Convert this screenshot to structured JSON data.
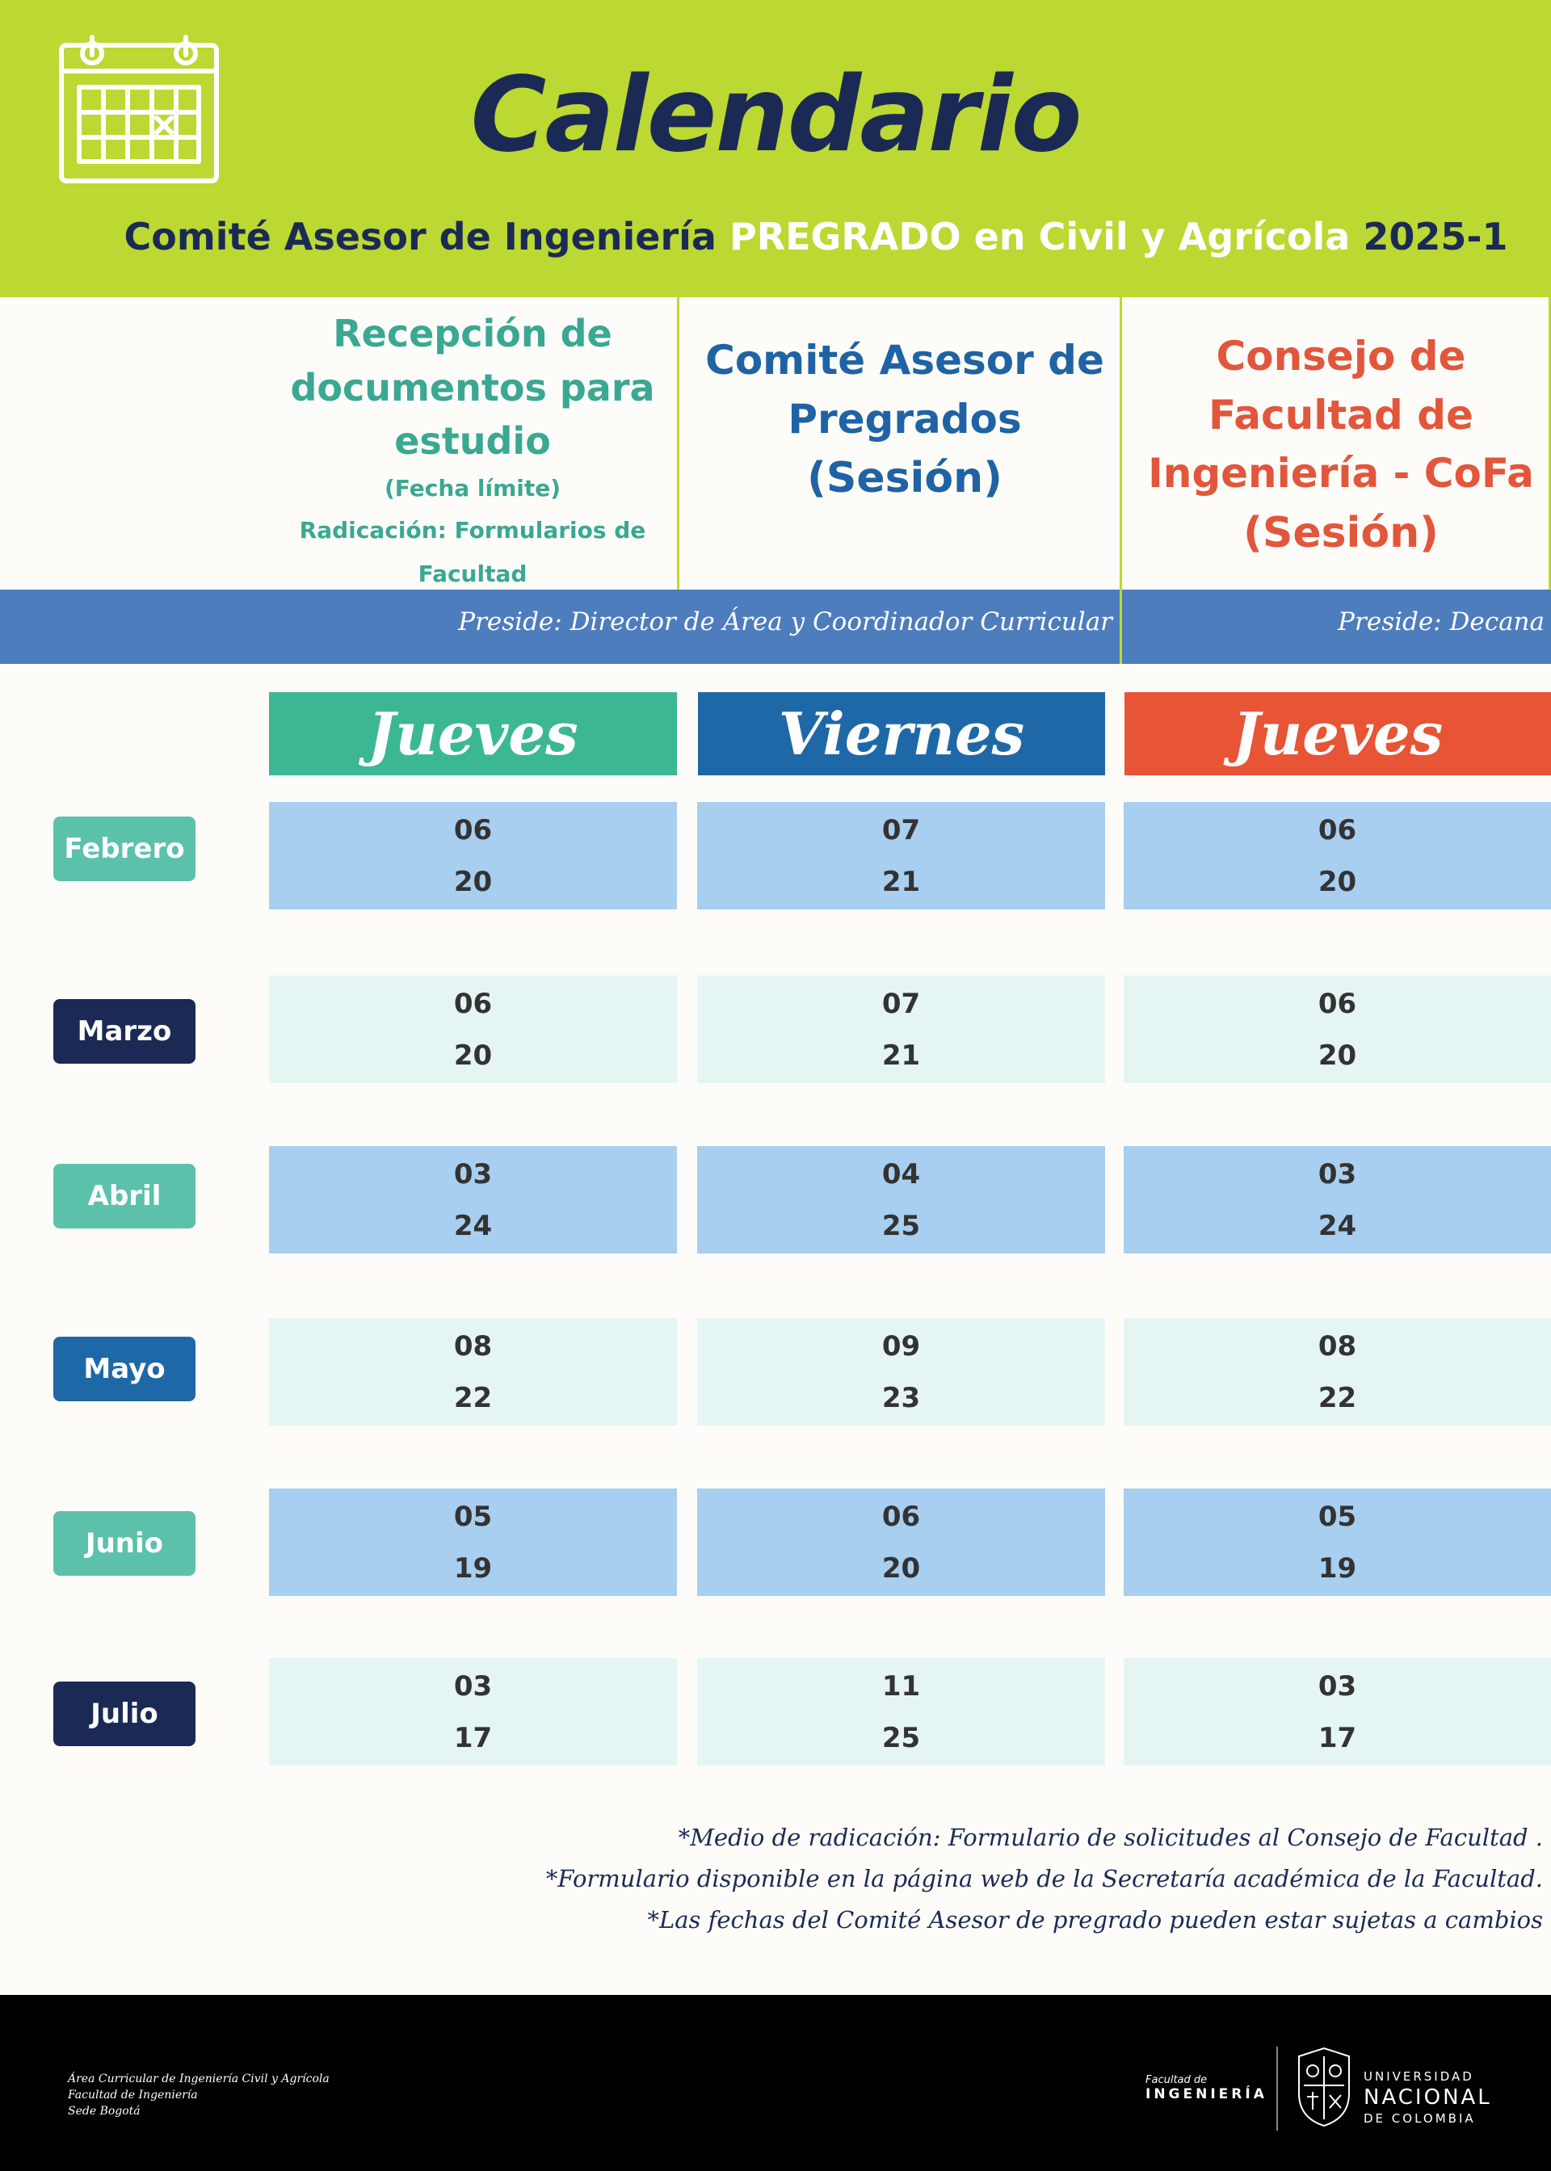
{
  "header": {
    "title": "Calendario",
    "subtitle": {
      "part1": "Comité Asesor de Ingeniería",
      "part2": "PREGRADO en Civil y Agrícola",
      "part3": "2025-1"
    },
    "icon": "calendar-icon"
  },
  "columns": [
    {
      "title_lines": [
        "Recepción de",
        "documentos para",
        "estudio"
      ],
      "note": "(Fecha límite)",
      "note2": "Radicación: Formularios de Facultad",
      "day": "Jueves"
    },
    {
      "title_lines": [
        "Comité Asesor de",
        "Pregrados"
      ],
      "session": "(Sesión)",
      "day": "Viernes"
    },
    {
      "title_lines": [
        "Consejo de",
        "Facultad de",
        "Ingeniería - CoFa"
      ],
      "session": "(Sesión)",
      "day": "Jueves"
    }
  ],
  "preside": {
    "left": "Preside: Director de Área y Coordinador Curricular",
    "right": "Preside: Decana"
  },
  "months": [
    {
      "name": "Febrero",
      "dates": [
        [
          "06",
          "20"
        ],
        [
          "07",
          "21"
        ],
        [
          "06",
          "20"
        ]
      ]
    },
    {
      "name": "Marzo",
      "dates": [
        [
          "06",
          "20"
        ],
        [
          "07",
          "21"
        ],
        [
          "06",
          "20"
        ]
      ]
    },
    {
      "name": "Abril",
      "dates": [
        [
          "03",
          "24"
        ],
        [
          "04",
          "25"
        ],
        [
          "03",
          "24"
        ]
      ]
    },
    {
      "name": "Mayo",
      "dates": [
        [
          "08",
          "22"
        ],
        [
          "09",
          "23"
        ],
        [
          "08",
          "22"
        ]
      ]
    },
    {
      "name": "Junio",
      "dates": [
        [
          "05",
          "19"
        ],
        [
          "06",
          "20"
        ],
        [
          "05",
          "19"
        ]
      ]
    },
    {
      "name": "Julio",
      "dates": [
        [
          "03",
          "17"
        ],
        [
          "11",
          "25"
        ],
        [
          "03",
          "17"
        ]
      ]
    }
  ],
  "colors": {
    "month_badges": [
      "#5cc1ab",
      "#1b2a55",
      "#5cc1ab",
      "#1f68a8",
      "#5cc1ab",
      "#1b2a55"
    ],
    "row_light_blue": "#a8cef0",
    "row_pale_mint": "#e5f5f3",
    "header_green": "#bcd832",
    "bar_blue": "#4d7dbc"
  },
  "notes": [
    "*Medio de radicación: Formulario de solicitudes al Consejo de Facultad .",
    "*Formulario disponible en la página web de la Secretaría académica de la Facultad.",
    "*Las fechas del Comité Asesor de pregrado pueden estar sujetas a cambios"
  ],
  "footer": {
    "left_lines": [
      "Área Curricular de Ingeniería Civil y Agrícola",
      "Facultad de Ingeniería",
      "Sede Bogotá"
    ],
    "faculty_small": "Facultad de",
    "faculty_big": "INGENIERÍA",
    "uni_line1": "UNIVERSIDAD",
    "uni_line2": "NACIONAL",
    "uni_line3": "DE COLOMBIA"
  }
}
